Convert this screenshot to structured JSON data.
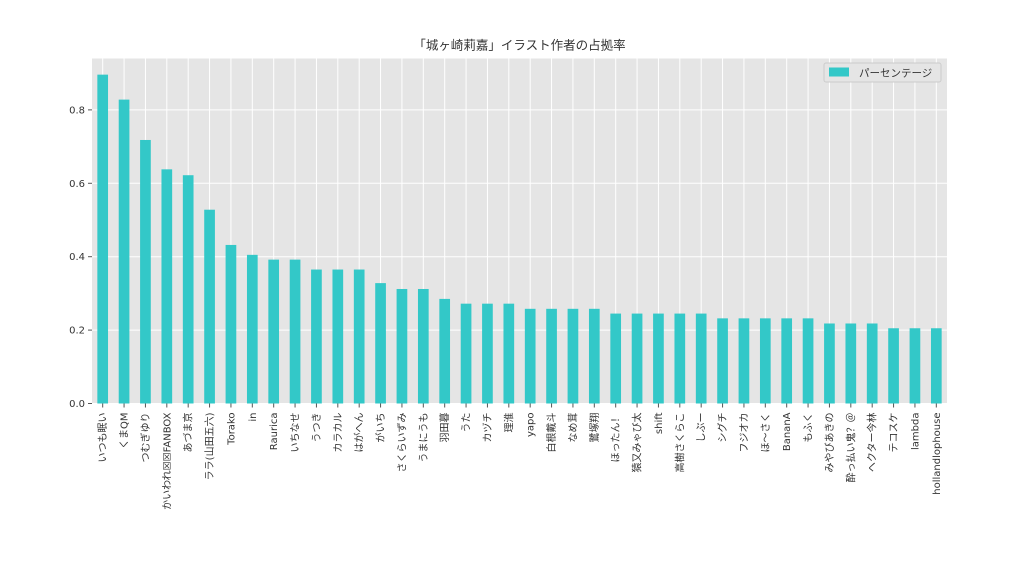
{
  "chart_data": {
    "type": "bar",
    "title": "「城ヶ崎莉嘉」イラスト作者の占拠率",
    "xlabel": "",
    "ylabel": "",
    "ylim": [
      0,
      0.94
    ],
    "yticks": [
      0.0,
      0.2,
      0.4,
      0.6,
      0.8
    ],
    "ytick_labels": [
      "0.0",
      "0.2",
      "0.4",
      "0.6",
      "0.8"
    ],
    "grid": true,
    "legend_position": "top-right",
    "bar_color": "#33c8c8",
    "background_color": "#e5e5e5",
    "categories": [
      "いつも眠い",
      "くまQM",
      "つむぎゆり",
      "かいわれ☒☒FANBOX",
      "あづま京",
      "ララ(山田五六)",
      "Torako",
      "in",
      "Raurica",
      "いちなせ",
      "うつき",
      "カラカル",
      "はがへん",
      "がいち",
      "さくらいずみ",
      "うまにうも",
      "羽田暮",
      "うた",
      "カヅチ",
      "理淮",
      "yapo",
      "白根戴斗",
      "なめ茸",
      "鷺塚翔",
      "ほったん！",
      "猿又みゃび太",
      "shift",
      "高樹さくらこ",
      "しぶー",
      "シグチ",
      "フジオカ",
      "ほ〜さく",
      "BananA",
      "もふく",
      "みやびあきの",
      "酔っ払い鬼？＠",
      "ヘクター今林",
      "テコスケ",
      "lambda",
      "hollandlophouse"
    ],
    "series": [
      {
        "name": "パーセンテージ",
        "values": [
          0.896,
          0.828,
          0.718,
          0.638,
          0.622,
          0.528,
          0.432,
          0.405,
          0.392,
          0.392,
          0.365,
          0.365,
          0.365,
          0.328,
          0.312,
          0.312,
          0.285,
          0.272,
          0.272,
          0.272,
          0.258,
          0.258,
          0.258,
          0.258,
          0.245,
          0.245,
          0.245,
          0.245,
          0.245,
          0.232,
          0.232,
          0.232,
          0.232,
          0.232,
          0.218,
          0.218,
          0.218,
          0.205,
          0.205,
          0.205
        ]
      }
    ]
  }
}
